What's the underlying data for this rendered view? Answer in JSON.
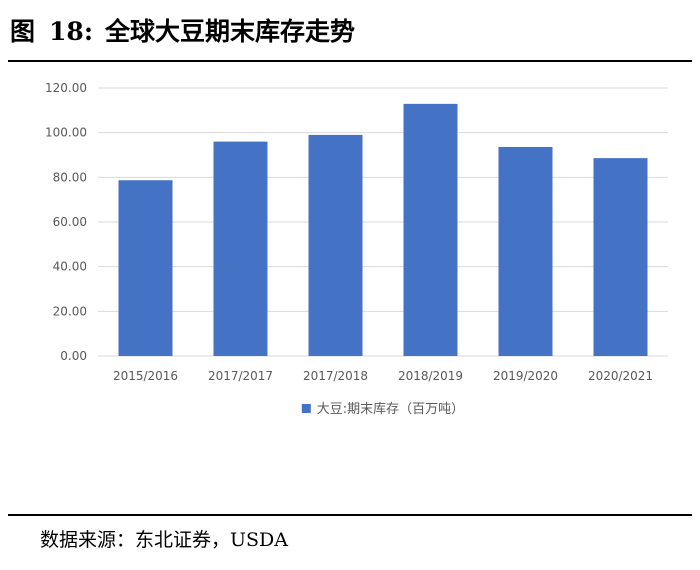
{
  "figure": {
    "label": "图",
    "number": "18",
    "colon": ":",
    "title": "全球大豆期末库存走势"
  },
  "source": "数据来源：东北证券，USDA",
  "chart_data": {
    "type": "bar",
    "title": "",
    "xlabel": "",
    "ylabel": "",
    "categories": [
      "2015/2016",
      "2017/2017",
      "2017/2018",
      "2018/2019",
      "2019/2020",
      "2020/2021"
    ],
    "series": [
      {
        "name": "大豆:期末库存（百万吨）",
        "values": [
          78.7,
          96.0,
          99.0,
          112.9,
          93.6,
          88.6
        ],
        "color": "#4472c4"
      }
    ],
    "yticks": [
      "0.00",
      "20.00",
      "40.00",
      "60.00",
      "80.00",
      "100.00",
      "120.00"
    ],
    "ylim": [
      0,
      120
    ],
    "grid": true,
    "legend_position": "bottom-center"
  }
}
